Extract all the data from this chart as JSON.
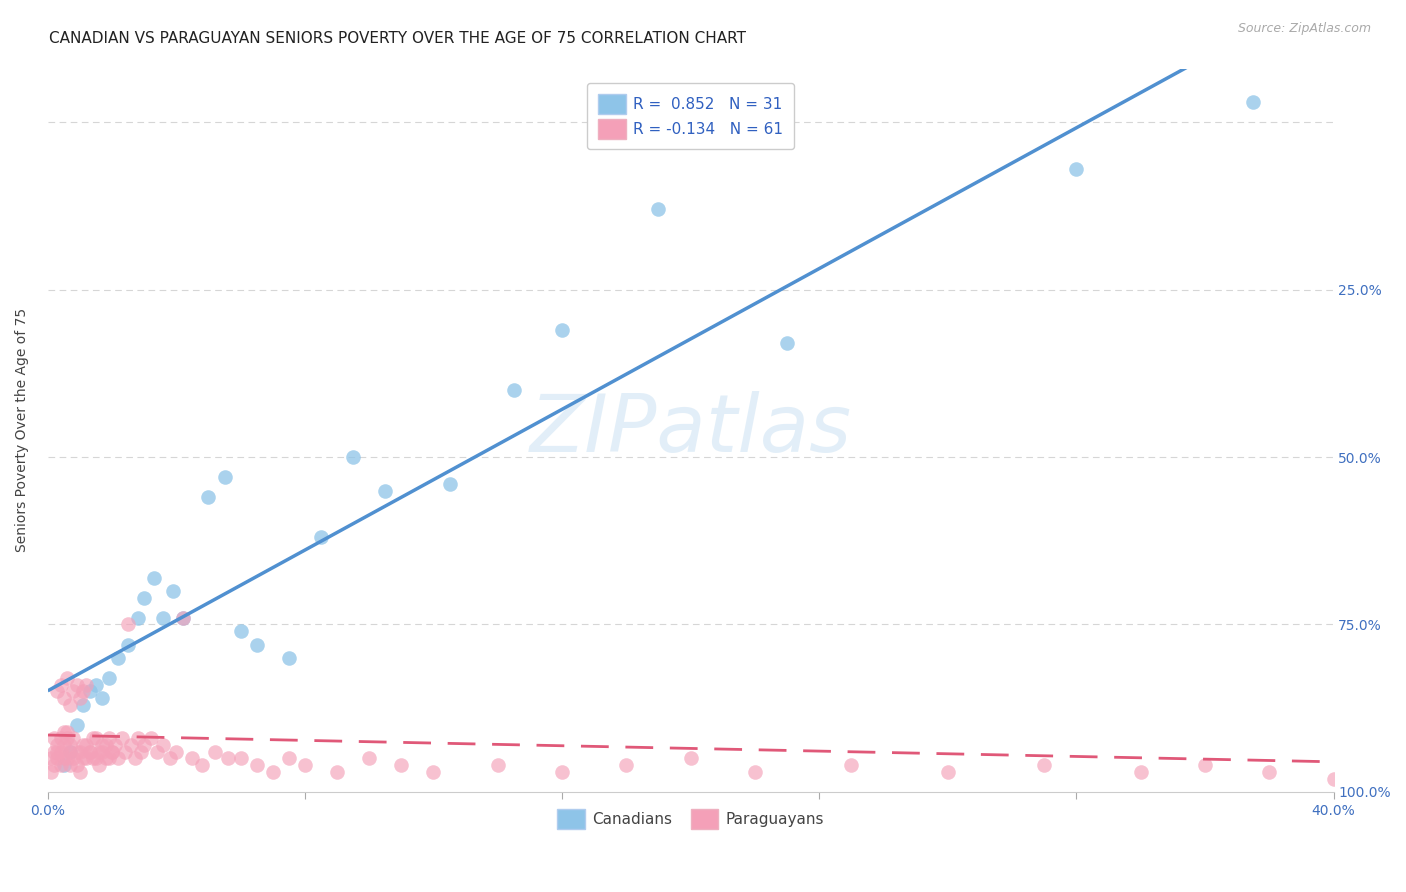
{
  "title": "CANADIAN VS PARAGUAYAN SENIORS POVERTY OVER THE AGE OF 75 CORRELATION CHART",
  "source": "Source: ZipAtlas.com",
  "ylabel": "Seniors Poverty Over the Age of 75",
  "watermark": "ZIPatlas",
  "legend_can": "R =  0.852   N = 31",
  "legend_par": "R = -0.134   N = 61",
  "canadians_color": "#8ec4e8",
  "paraguayans_color": "#f4a0b8",
  "canadian_line_color": "#5090d0",
  "paraguayan_line_color": "#e05878",
  "background_color": "#ffffff",
  "grid_color": "#cccccc",
  "xlim": [
    0.0,
    0.4
  ],
  "ylim": [
    0.0,
    1.08
  ],
  "canadians_x": [
    0.005,
    0.007,
    0.009,
    0.011,
    0.013,
    0.015,
    0.017,
    0.019,
    0.022,
    0.025,
    0.028,
    0.03,
    0.033,
    0.036,
    0.039,
    0.042,
    0.05,
    0.055,
    0.06,
    0.065,
    0.075,
    0.085,
    0.095,
    0.105,
    0.125,
    0.145,
    0.16,
    0.19,
    0.23,
    0.32,
    0.375
  ],
  "canadians_y": [
    0.04,
    0.06,
    0.1,
    0.13,
    0.15,
    0.16,
    0.14,
    0.17,
    0.2,
    0.22,
    0.26,
    0.29,
    0.32,
    0.26,
    0.3,
    0.26,
    0.44,
    0.47,
    0.24,
    0.22,
    0.2,
    0.38,
    0.5,
    0.45,
    0.46,
    0.6,
    0.69,
    0.87,
    0.67,
    0.93,
    1.03
  ],
  "paraguayans_x": [
    0.001,
    0.002,
    0.003,
    0.004,
    0.005,
    0.006,
    0.007,
    0.008,
    0.009,
    0.01,
    0.011,
    0.012,
    0.013,
    0.014,
    0.015,
    0.016,
    0.017,
    0.018,
    0.019,
    0.02,
    0.021,
    0.022,
    0.023,
    0.024,
    0.025,
    0.026,
    0.027,
    0.028,
    0.029,
    0.03,
    0.032,
    0.034,
    0.036,
    0.038,
    0.04,
    0.042,
    0.045,
    0.048,
    0.052,
    0.056,
    0.06,
    0.065,
    0.07,
    0.075,
    0.08,
    0.09,
    0.1,
    0.11,
    0.12,
    0.14,
    0.16,
    0.18,
    0.2,
    0.22,
    0.25,
    0.28,
    0.31,
    0.34,
    0.36,
    0.38,
    0.4
  ],
  "paraguayans_y": [
    0.05,
    0.06,
    0.07,
    0.08,
    0.05,
    0.09,
    0.06,
    0.08,
    0.04,
    0.06,
    0.05,
    0.07,
    0.06,
    0.08,
    0.05,
    0.06,
    0.07,
    0.05,
    0.08,
    0.06,
    0.07,
    0.05,
    0.08,
    0.06,
    0.25,
    0.07,
    0.05,
    0.08,
    0.06,
    0.07,
    0.08,
    0.06,
    0.07,
    0.05,
    0.06,
    0.26,
    0.05,
    0.04,
    0.06,
    0.05,
    0.05,
    0.04,
    0.03,
    0.05,
    0.04,
    0.03,
    0.05,
    0.04,
    0.03,
    0.04,
    0.03,
    0.04,
    0.05,
    0.03,
    0.04,
    0.03,
    0.04,
    0.03,
    0.04,
    0.03,
    0.02
  ],
  "par_cluster_x": [
    0.001,
    0.002,
    0.003,
    0.004,
    0.005,
    0.006,
    0.007,
    0.008,
    0.009,
    0.01,
    0.011,
    0.012,
    0.002,
    0.003,
    0.004,
    0.005,
    0.006,
    0.007,
    0.013,
    0.014,
    0.015,
    0.016,
    0.017,
    0.018,
    0.019,
    0.02,
    0.003,
    0.004,
    0.005,
    0.006,
    0.007,
    0.008,
    0.009,
    0.01,
    0.011,
    0.012
  ],
  "par_cluster_y": [
    0.03,
    0.04,
    0.05,
    0.06,
    0.07,
    0.08,
    0.04,
    0.05,
    0.06,
    0.03,
    0.07,
    0.05,
    0.08,
    0.06,
    0.04,
    0.09,
    0.05,
    0.07,
    0.06,
    0.05,
    0.08,
    0.04,
    0.06,
    0.07,
    0.05,
    0.06,
    0.15,
    0.16,
    0.14,
    0.17,
    0.13,
    0.15,
    0.16,
    0.14,
    0.15,
    0.16
  ],
  "tick_fontsize": 10,
  "axis_fontsize": 10,
  "title_fontsize": 11
}
